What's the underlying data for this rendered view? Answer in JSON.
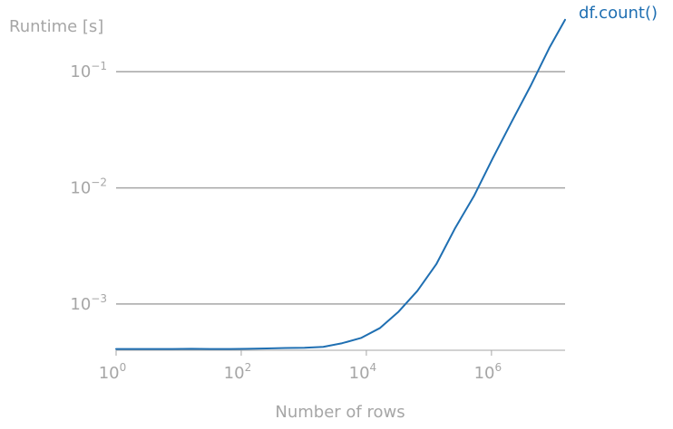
{
  "chart_data": {
    "type": "line",
    "title": "",
    "xlabel": "Number of rows",
    "ylabel": "Runtime [s]",
    "x_scale": "log",
    "y_scale": "log",
    "xlim": [
      1,
      15000000
    ],
    "ylim": [
      0.0004,
      0.3
    ],
    "grid": "horizontal",
    "legend": "inline-end",
    "colors": {
      "series": "#1f6fb2",
      "axis_text": "#a6a6a6",
      "gridline": "#a6a6a6"
    },
    "x_ticks": [
      {
        "value": 1,
        "base": "10",
        "exp": "0"
      },
      {
        "value": 100,
        "base": "10",
        "exp": "2"
      },
      {
        "value": 10000,
        "base": "10",
        "exp": "4"
      },
      {
        "value": 1000000,
        "base": "10",
        "exp": "6"
      }
    ],
    "y_ticks": [
      {
        "value": 0.001,
        "base": "10",
        "exp": "−3"
      },
      {
        "value": 0.01,
        "base": "10",
        "exp": "−2"
      },
      {
        "value": 0.1,
        "base": "10",
        "exp": "−1"
      }
    ],
    "series": [
      {
        "name": "df.count()",
        "x": [
          1,
          2,
          4,
          8,
          16,
          32,
          64,
          128,
          256,
          512,
          1024,
          2048,
          4096,
          8192,
          16384,
          32768,
          65536,
          131072,
          262144,
          524288,
          1048576,
          2097152,
          4194304,
          8388608,
          15000000
        ],
        "y": [
          0.00041,
          0.00041,
          0.00041,
          0.00041,
          0.000412,
          0.00041,
          0.00041,
          0.000412,
          0.000415,
          0.000418,
          0.00042,
          0.000428,
          0.00046,
          0.00051,
          0.00062,
          0.00086,
          0.0013,
          0.0022,
          0.0045,
          0.0085,
          0.018,
          0.037,
          0.075,
          0.16,
          0.28
        ]
      }
    ]
  }
}
